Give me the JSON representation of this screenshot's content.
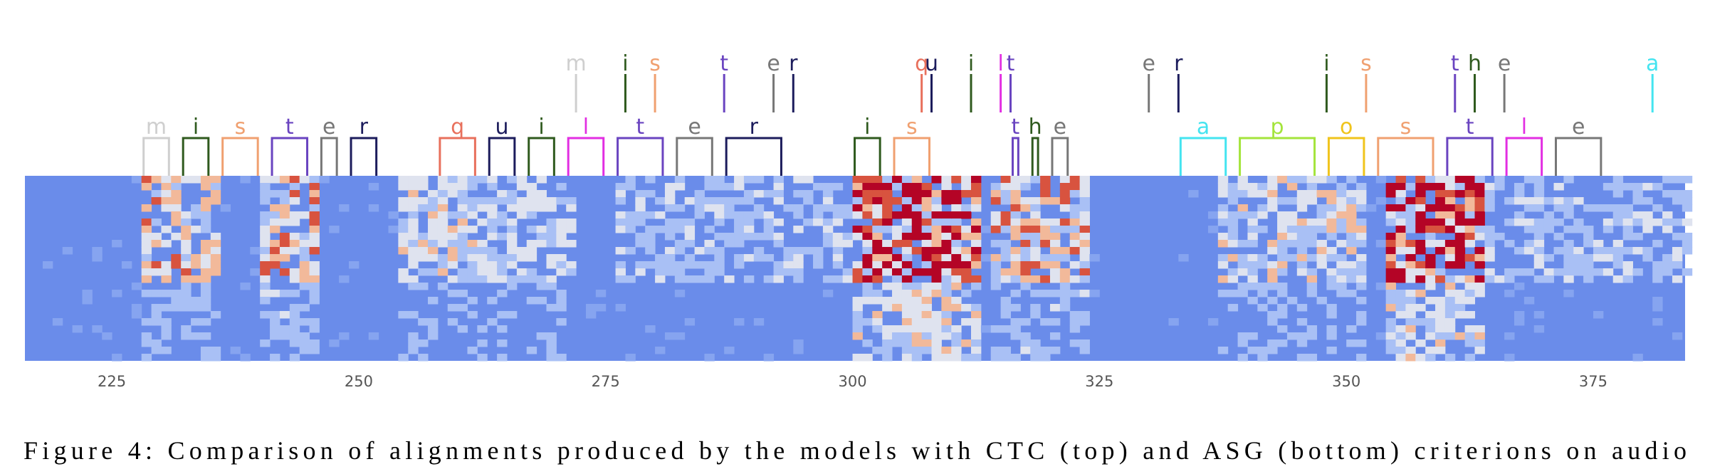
{
  "figure": {
    "xlim": [
      216.2,
      384.3
    ],
    "xticks": [
      225,
      250,
      275,
      300,
      325,
      350,
      375
    ],
    "ctc": [
      {
        "label": "m",
        "frame": 272,
        "color": "#cfcfcf"
      },
      {
        "label": "i",
        "frame": 277,
        "color": "#2f5a1e"
      },
      {
        "label": "s",
        "frame": 280,
        "color": "#f0a070"
      },
      {
        "label": "t",
        "frame": 287,
        "color": "#6a44c0"
      },
      {
        "label": "e",
        "frame": 292,
        "color": "#777777"
      },
      {
        "label": "r",
        "frame": 294,
        "color": "#1c1c5c"
      },
      {
        "label": "q",
        "frame": 307,
        "color": "#e8705c"
      },
      {
        "label": "u",
        "frame": 308,
        "color": "#1c1c5c"
      },
      {
        "label": "i",
        "frame": 312,
        "color": "#2f5a1e"
      },
      {
        "label": "l",
        "frame": 315,
        "color": "#e22ee2"
      },
      {
        "label": "t",
        "frame": 316,
        "color": "#6a44c0"
      },
      {
        "label": "e",
        "frame": 330,
        "color": "#777777"
      },
      {
        "label": "r",
        "frame": 333,
        "color": "#1c1c5c"
      },
      {
        "label": "i",
        "frame": 348,
        "color": "#2f5a1e"
      },
      {
        "label": "s",
        "frame": 352,
        "color": "#f0a070"
      },
      {
        "label": "t",
        "frame": 361,
        "color": "#6a44c0"
      },
      {
        "label": "h",
        "frame": 363,
        "color": "#2f5a1e"
      },
      {
        "label": "e",
        "frame": 366,
        "color": "#777777"
      },
      {
        "label": "a",
        "frame": 381,
        "color": "#44e4f0"
      }
    ],
    "asg": [
      {
        "label": "m",
        "start": 228,
        "end": 231,
        "color": "#cfcfcf"
      },
      {
        "label": "i",
        "start": 232,
        "end": 235,
        "color": "#2f5a1e"
      },
      {
        "label": "s",
        "start": 236,
        "end": 240,
        "color": "#f0a070"
      },
      {
        "label": "t",
        "start": 241,
        "end": 245,
        "color": "#6a44c0"
      },
      {
        "label": "e",
        "start": 246,
        "end": 248,
        "color": "#777777"
      },
      {
        "label": "r",
        "start": 249,
        "end": 252,
        "color": "#1c1c5c"
      },
      {
        "label": "q",
        "start": 258,
        "end": 262,
        "color": "#e8705c"
      },
      {
        "label": "u",
        "start": 263,
        "end": 266,
        "color": "#1c1c5c"
      },
      {
        "label": "i",
        "start": 267,
        "end": 270,
        "color": "#2f5a1e"
      },
      {
        "label": "l",
        "start": 271,
        "end": 275,
        "color": "#e22ee2"
      },
      {
        "label": "t",
        "start": 276,
        "end": 281,
        "color": "#6a44c0"
      },
      {
        "label": "e",
        "start": 282,
        "end": 286,
        "color": "#777777"
      },
      {
        "label": "r",
        "start": 287,
        "end": 293,
        "color": "#1c1c5c"
      },
      {
        "label": "i",
        "start": 300,
        "end": 303,
        "color": "#2f5a1e"
      },
      {
        "label": "s",
        "start": 304,
        "end": 308,
        "color": "#f0a070"
      },
      {
        "label": "t",
        "start": 316,
        "end": 317,
        "color": "#6a44c0"
      },
      {
        "label": "h",
        "start": 318,
        "end": 319,
        "color": "#2f5a1e"
      },
      {
        "label": "e",
        "start": 320,
        "end": 322,
        "color": "#777777"
      },
      {
        "label": "a",
        "start": 333,
        "end": 338,
        "color": "#44e4f0"
      },
      {
        "label": "p",
        "start": 339,
        "end": 347,
        "color": "#a4e43c"
      },
      {
        "label": "o",
        "start": 348,
        "end": 352,
        "color": "#f0c41c"
      },
      {
        "label": "s",
        "start": 353,
        "end": 359,
        "color": "#f0a070"
      },
      {
        "label": "t",
        "start": 360,
        "end": 365,
        "color": "#6a44c0"
      },
      {
        "label": "l",
        "start": 366,
        "end": 370,
        "color": "#e22ee2"
      },
      {
        "label": "e",
        "start": 371,
        "end": 376,
        "color": "#777777"
      }
    ],
    "caption": "Figure 4:  Comparison of alignments produced by the models with CTC (top) and ASG (bottom) criterions on audio"
  }
}
